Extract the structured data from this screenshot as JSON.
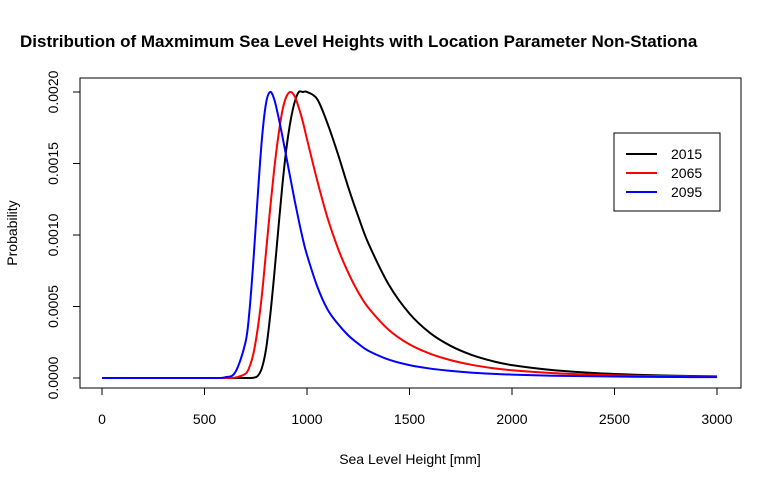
{
  "chart_data": {
    "type": "line",
    "title": "Distribution of Maxmimum Sea Level Heights with Location Parameter Non-Stationa",
    "xlabel": "Sea Level Height [mm]",
    "ylabel": "Probability",
    "xlim": [
      0,
      3000
    ],
    "ylim": [
      0,
      0.002
    ],
    "x_ticks": [
      "0",
      "500",
      "1000",
      "1500",
      "2000",
      "2500",
      "3000"
    ],
    "y_ticks": [
      "0.0000",
      "0.0005",
      "0.0010",
      "0.0015",
      "0.0020"
    ],
    "legend_position": "top-right",
    "grid": false,
    "x": [
      0,
      500,
      550,
      600,
      650,
      700,
      720,
      740,
      760,
      780,
      800,
      820,
      840,
      860,
      880,
      900,
      920,
      940,
      960,
      980,
      1000,
      1050,
      1100,
      1150,
      1200,
      1250,
      1300,
      1400,
      1500,
      1600,
      1700,
      1800,
      1900,
      2000,
      2200,
      2400,
      2600,
      2800,
      3000
    ],
    "series": [
      {
        "name": "2015",
        "color": "#000000",
        "values": [
          0,
          0,
          0,
          0,
          0,
          0,
          0,
          2e-06,
          1.5e-05,
          7e-05,
          0.0002,
          0.00043,
          0.00072,
          0.00104,
          0.00135,
          0.00161,
          0.0018,
          0.00193,
          0.002,
          0.002,
          0.002,
          0.00195,
          0.00178,
          0.00157,
          0.00134,
          0.00113,
          0.00094,
          0.00065,
          0.00045,
          0.000315,
          0.000225,
          0.000163,
          0.00012,
          9e-05,
          5.5e-05,
          3.5e-05,
          2.3e-05,
          1.6e-05,
          1.1e-05
        ]
      },
      {
        "name": "2065",
        "color": "#ff0000",
        "values": [
          0,
          0,
          0,
          0,
          3e-06,
          3e-05,
          8e-05,
          0.00018,
          0.00035,
          0.00058,
          0.00088,
          0.00118,
          0.00146,
          0.00169,
          0.00187,
          0.00197,
          0.002,
          0.00197,
          0.00189,
          0.00179,
          0.00167,
          0.00138,
          0.00112,
          0.00091,
          0.00074,
          0.0006,
          0.00049,
          0.000335,
          0.000235,
          0.00017,
          0.000125,
          9.3e-05,
          7e-05,
          5.4e-05,
          3.4e-05,
          2.3e-05,
          1.6e-05,
          1.2e-05,
          9e-06
        ]
      },
      {
        "name": "2095",
        "color": "#0000ff",
        "values": [
          0,
          0,
          0,
          5e-06,
          4e-05,
          0.00025,
          0.00048,
          0.00085,
          0.00128,
          0.00167,
          0.00192,
          0.002,
          0.00195,
          0.00183,
          0.00169,
          0.00154,
          0.00139,
          0.00124,
          0.0011,
          0.00097,
          0.00086,
          0.00064,
          0.00048,
          0.00038,
          0.0003,
          0.00024,
          0.00019,
          0.000128,
          9e-05,
          6.6e-05,
          5e-05,
          3.8e-05,
          3e-05,
          2.4e-05,
          1.6e-05,
          1.2e-05,
          9e-06,
          7e-06,
          6e-06
        ]
      }
    ]
  }
}
